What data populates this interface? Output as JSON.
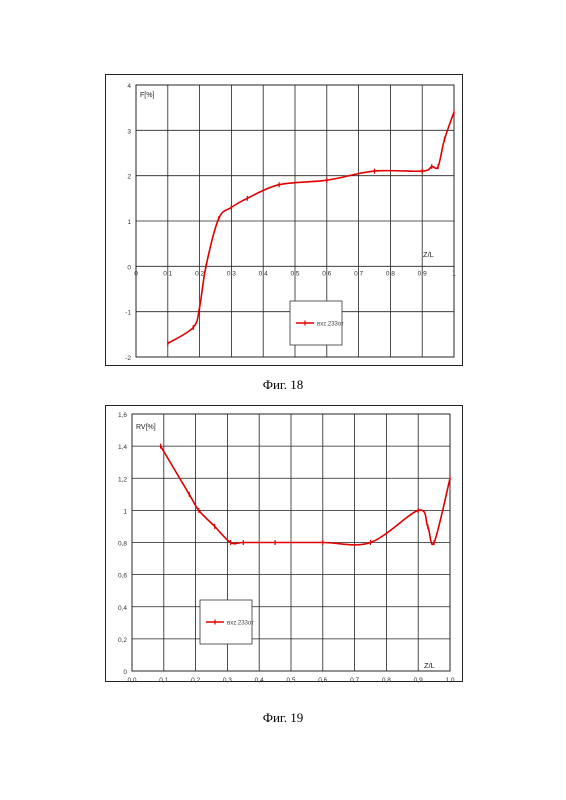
{
  "figures": [
    {
      "caption": "Фиг. 18",
      "chart_data": {
        "type": "line",
        "ylabel": "F[%]",
        "xlabel": "Z/L",
        "xlim": [
          0,
          1
        ],
        "ylim": [
          -2,
          4
        ],
        "x_ticks": [
          "0",
          "0.1",
          "0.2",
          "0.3",
          "0.4",
          "0.5",
          "0.6",
          "0.7",
          "0.8",
          "0.9",
          "1"
        ],
        "y_ticks": [
          "-2",
          "-1",
          "0",
          "1",
          "2",
          "3",
          "4"
        ],
        "grid": true,
        "legend_position": "bottom-center",
        "series": [
          {
            "name": "вхz.233от",
            "color": "#e00000",
            "x": [
              0.1,
              0.18,
              0.2,
              0.22,
              0.26,
              0.3,
              0.35,
              0.45,
              0.6,
              0.75,
              0.9,
              0.93,
              0.95,
              0.97,
              1.0
            ],
            "y": [
              -1.7,
              -1.35,
              -0.9,
              0.0,
              1.05,
              1.3,
              1.5,
              1.8,
              1.9,
              2.1,
              2.1,
              2.2,
              2.2,
              2.8,
              3.4
            ]
          }
        ]
      }
    },
    {
      "caption": "Фиг. 19",
      "chart_data": {
        "type": "line",
        "ylabel": "RV[%]",
        "xlabel": "Z/L",
        "xlim": [
          0,
          1
        ],
        "ylim": [
          0,
          1.6
        ],
        "x_ticks": [
          "0,0",
          "0,1",
          "0,2",
          "0,3",
          "0,4",
          "0,5",
          "0,6",
          "0,7",
          "0,8",
          "0,9",
          "1,0"
        ],
        "y_ticks": [
          "0",
          "0,2",
          "0,4",
          "0,6",
          "0,8",
          "1",
          "1,2",
          "1,4",
          "1,6"
        ],
        "grid": true,
        "legend_position": "bottom-left",
        "series": [
          {
            "name": "вхz.233от",
            "color": "#e00000",
            "x": [
              0.09,
              0.18,
              0.21,
              0.26,
              0.31,
              0.35,
              0.45,
              0.6,
              0.75,
              0.9,
              0.93,
              0.95,
              1.0
            ],
            "y": [
              1.4,
              1.1,
              1.0,
              0.9,
              0.8,
              0.8,
              0.8,
              0.8,
              0.8,
              1.0,
              0.9,
              0.8,
              1.2
            ]
          }
        ]
      }
    }
  ]
}
